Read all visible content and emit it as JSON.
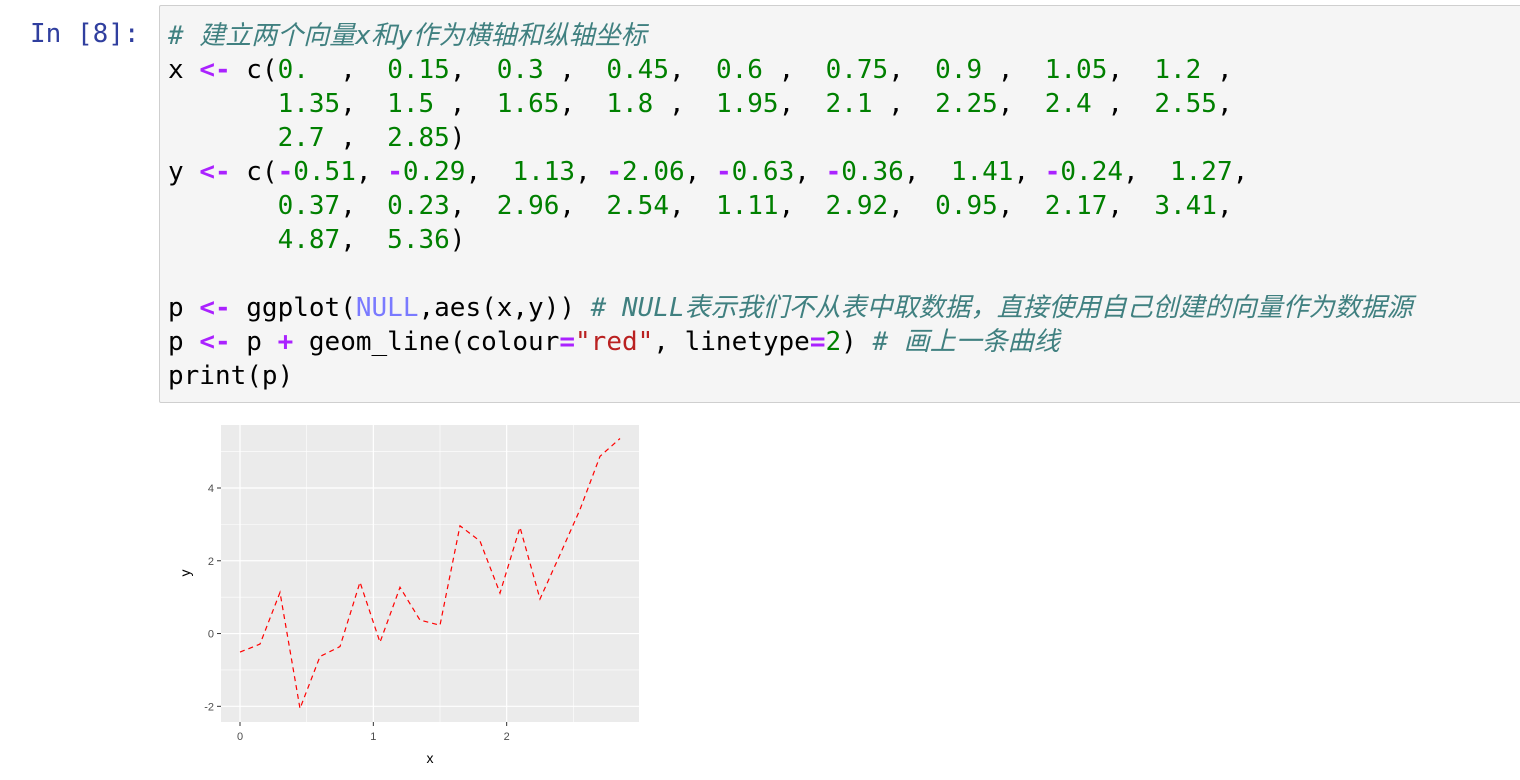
{
  "cell": {
    "prompt": "In [8]:",
    "code_lines": [
      [
        {
          "t": "# 建立两个向量x和y作为横轴和纵轴坐标",
          "c": "cm"
        }
      ],
      [
        {
          "t": "x ",
          "c": ""
        },
        {
          "t": "<-",
          "c": "op"
        },
        {
          "t": " c(",
          "c": ""
        },
        {
          "t": "0.",
          "c": "num"
        },
        {
          "t": "  ,  ",
          "c": ""
        },
        {
          "t": "0.15",
          "c": "num"
        },
        {
          "t": ",  ",
          "c": ""
        },
        {
          "t": "0.3",
          "c": "num"
        },
        {
          "t": " ,  ",
          "c": ""
        },
        {
          "t": "0.45",
          "c": "num"
        },
        {
          "t": ",  ",
          "c": ""
        },
        {
          "t": "0.6",
          "c": "num"
        },
        {
          "t": " ,  ",
          "c": ""
        },
        {
          "t": "0.75",
          "c": "num"
        },
        {
          "t": ",  ",
          "c": ""
        },
        {
          "t": "0.9",
          "c": "num"
        },
        {
          "t": " ,  ",
          "c": ""
        },
        {
          "t": "1.05",
          "c": "num"
        },
        {
          "t": ",  ",
          "c": ""
        },
        {
          "t": "1.2",
          "c": "num"
        },
        {
          "t": " ,",
          "c": ""
        }
      ],
      [
        {
          "t": "       ",
          "c": ""
        },
        {
          "t": "1.35",
          "c": "num"
        },
        {
          "t": ",  ",
          "c": ""
        },
        {
          "t": "1.5",
          "c": "num"
        },
        {
          "t": " ,  ",
          "c": ""
        },
        {
          "t": "1.65",
          "c": "num"
        },
        {
          "t": ",  ",
          "c": ""
        },
        {
          "t": "1.8",
          "c": "num"
        },
        {
          "t": " ,  ",
          "c": ""
        },
        {
          "t": "1.95",
          "c": "num"
        },
        {
          "t": ",  ",
          "c": ""
        },
        {
          "t": "2.1",
          "c": "num"
        },
        {
          "t": " ,  ",
          "c": ""
        },
        {
          "t": "2.25",
          "c": "num"
        },
        {
          "t": ",  ",
          "c": ""
        },
        {
          "t": "2.4",
          "c": "num"
        },
        {
          "t": " ,  ",
          "c": ""
        },
        {
          "t": "2.55",
          "c": "num"
        },
        {
          "t": ",",
          "c": ""
        }
      ],
      [
        {
          "t": "       ",
          "c": ""
        },
        {
          "t": "2.7",
          "c": "num"
        },
        {
          "t": " ,  ",
          "c": ""
        },
        {
          "t": "2.85",
          "c": "num"
        },
        {
          "t": ")",
          "c": ""
        }
      ],
      [
        {
          "t": "y ",
          "c": ""
        },
        {
          "t": "<-",
          "c": "op"
        },
        {
          "t": " c(",
          "c": ""
        },
        {
          "t": "-",
          "c": "op"
        },
        {
          "t": "0.51",
          "c": "num"
        },
        {
          "t": ", ",
          "c": ""
        },
        {
          "t": "-",
          "c": "op"
        },
        {
          "t": "0.29",
          "c": "num"
        },
        {
          "t": ",  ",
          "c": ""
        },
        {
          "t": "1.13",
          "c": "num"
        },
        {
          "t": ", ",
          "c": ""
        },
        {
          "t": "-",
          "c": "op"
        },
        {
          "t": "2.06",
          "c": "num"
        },
        {
          "t": ", ",
          "c": ""
        },
        {
          "t": "-",
          "c": "op"
        },
        {
          "t": "0.63",
          "c": "num"
        },
        {
          "t": ", ",
          "c": ""
        },
        {
          "t": "-",
          "c": "op"
        },
        {
          "t": "0.36",
          "c": "num"
        },
        {
          "t": ",  ",
          "c": ""
        },
        {
          "t": "1.41",
          "c": "num"
        },
        {
          "t": ", ",
          "c": ""
        },
        {
          "t": "-",
          "c": "op"
        },
        {
          "t": "0.24",
          "c": "num"
        },
        {
          "t": ",  ",
          "c": ""
        },
        {
          "t": "1.27",
          "c": "num"
        },
        {
          "t": ",",
          "c": ""
        }
      ],
      [
        {
          "t": "       ",
          "c": ""
        },
        {
          "t": "0.37",
          "c": "num"
        },
        {
          "t": ",  ",
          "c": ""
        },
        {
          "t": "0.23",
          "c": "num"
        },
        {
          "t": ",  ",
          "c": ""
        },
        {
          "t": "2.96",
          "c": "num"
        },
        {
          "t": ",  ",
          "c": ""
        },
        {
          "t": "2.54",
          "c": "num"
        },
        {
          "t": ",  ",
          "c": ""
        },
        {
          "t": "1.11",
          "c": "num"
        },
        {
          "t": ",  ",
          "c": ""
        },
        {
          "t": "2.92",
          "c": "num"
        },
        {
          "t": ",  ",
          "c": ""
        },
        {
          "t": "0.95",
          "c": "num"
        },
        {
          "t": ",  ",
          "c": ""
        },
        {
          "t": "2.17",
          "c": "num"
        },
        {
          "t": ",  ",
          "c": ""
        },
        {
          "t": "3.41",
          "c": "num"
        },
        {
          "t": ",",
          "c": ""
        }
      ],
      [
        {
          "t": "       ",
          "c": ""
        },
        {
          "t": "4.87",
          "c": "num"
        },
        {
          "t": ",  ",
          "c": ""
        },
        {
          "t": "5.36",
          "c": "num"
        },
        {
          "t": ")",
          "c": ""
        }
      ],
      [
        {
          "t": "",
          "c": ""
        }
      ],
      [
        {
          "t": "p ",
          "c": ""
        },
        {
          "t": "<-",
          "c": "op"
        },
        {
          "t": " ggplot(",
          "c": ""
        },
        {
          "t": "NULL",
          "c": "kw"
        },
        {
          "t": ",aes(x,y)) ",
          "c": ""
        },
        {
          "t": "# NULL表示我们不从表中取数据，直接使用自己创建的向量作为数据源",
          "c": "cm"
        }
      ],
      [
        {
          "t": "p ",
          "c": ""
        },
        {
          "t": "<-",
          "c": "op"
        },
        {
          "t": " p ",
          "c": ""
        },
        {
          "t": "+",
          "c": "op"
        },
        {
          "t": " geom_line(colour",
          "c": ""
        },
        {
          "t": "=",
          "c": "op"
        },
        {
          "t": "\"red\"",
          "c": "str"
        },
        {
          "t": ", linetype",
          "c": ""
        },
        {
          "t": "=",
          "c": "op"
        },
        {
          "t": "2",
          "c": "num"
        },
        {
          "t": ") ",
          "c": ""
        },
        {
          "t": "# 画上一条曲线",
          "c": "cm"
        }
      ],
      [
        {
          "t": "print(p)",
          "c": ""
        }
      ]
    ]
  },
  "chart_data": {
    "type": "line",
    "x": [
      0,
      0.15,
      0.3,
      0.45,
      0.6,
      0.75,
      0.9,
      1.05,
      1.2,
      1.35,
      1.5,
      1.65,
      1.8,
      1.95,
      2.1,
      2.25,
      2.4,
      2.55,
      2.7,
      2.85
    ],
    "y": [
      -0.51,
      -0.29,
      1.13,
      -2.06,
      -0.63,
      -0.36,
      1.41,
      -0.24,
      1.27,
      0.37,
      0.23,
      2.96,
      2.54,
      1.11,
      2.92,
      0.95,
      2.17,
      3.41,
      4.87,
      5.36
    ],
    "xlabel": "x",
    "ylabel": "y",
    "xlim": [
      -0.1425,
      2.9925
    ],
    "ylim": [
      -2.431,
      5.731
    ],
    "xticks": [
      0,
      1,
      2
    ],
    "yticks": [
      -2,
      0,
      2,
      4
    ],
    "xtick_labels": [
      "0",
      "1",
      "2"
    ],
    "ytick_labels": [
      "-2",
      "0",
      "2",
      "4"
    ],
    "line_color": "#ff0000",
    "line_style": "dashed",
    "panel_background": "#ebebeb",
    "grid": true
  }
}
